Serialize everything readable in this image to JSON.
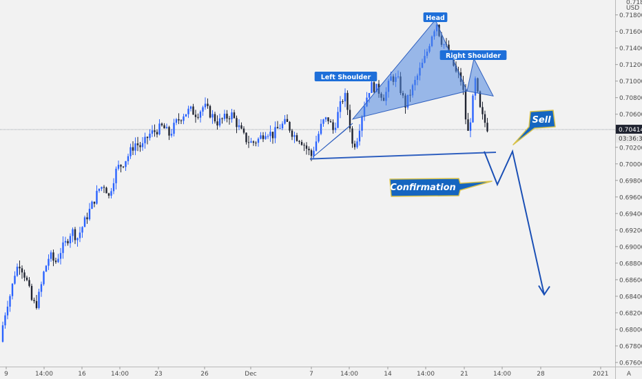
{
  "chart_data": {
    "type": "candlestick",
    "instrument_unit": "USD",
    "price_top_label": "0.71800",
    "ylim": [
      0.6755,
      0.7198
    ],
    "y_ticks": [
      "0.67600",
      "0.67800",
      "0.68000",
      "0.68200",
      "0.68400",
      "0.68600",
      "0.68800",
      "0.69000",
      "0.69200",
      "0.69400",
      "0.69600",
      "0.69800",
      "0.70000",
      "0.70200",
      "0.70400",
      "0.70600",
      "0.70800",
      "0.71000",
      "0.71200",
      "0.71400",
      "0.71600",
      "0.71800"
    ],
    "x_ticks": [
      "9",
      "14:00",
      "16",
      "14:00",
      "23",
      "26",
      "Dec",
      "7",
      "14:00",
      "14",
      "14:00",
      "21",
      "14:00",
      "28",
      "2021"
    ],
    "current_price": "0.70414",
    "countdown": "03:36:30",
    "currency": "USD",
    "pattern_labels": {
      "left_shoulder": "Left Shoulder",
      "head": "Head",
      "right_shoulder": "Right Shoulder"
    },
    "annotations": {
      "sell": "Sell",
      "confirmation": "Confirmation"
    },
    "auto_scale_label": "A",
    "pattern_points": {
      "left_shoulder": [
        [
          0.7008,
          0.7006
        ],
        [
          0.704,
          0.7092
        ],
        [
          0.7049,
          0.7006
        ]
      ],
      "head": [
        [
          0.7054,
          0.7007
        ],
        [
          0.7174,
          0.7174
        ],
        [
          0.7088,
          0.7014
        ]
      ],
      "right_shoulder": [
        [
          0.7088,
          0.7014
        ],
        [
          0.7127,
          0.7127
        ],
        [
          0.7082,
          0.7014
        ]
      ]
    },
    "neckline": [
      0.7006,
      0.7014
    ],
    "projection": [
      0.7015,
      0.6975,
      0.7015,
      0.6842
    ],
    "colors": {
      "up": "#2962ff",
      "down": "#1f2330",
      "pattern_fill": "#4f86e0",
      "pattern_stroke": "#2e5fbf",
      "label_bg": "#1e6fd9",
      "projection": "#1a4fb5",
      "callout_bg": "#1565c0",
      "callout_border": "#d8c24a",
      "price_badge": "#1f2330"
    }
  }
}
